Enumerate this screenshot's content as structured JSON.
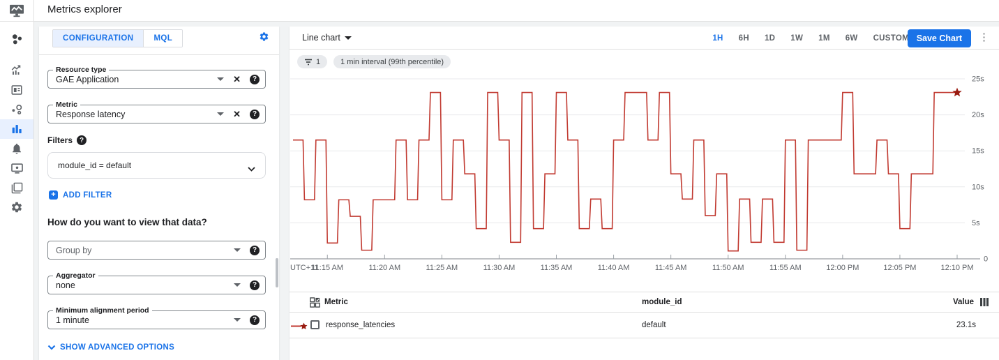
{
  "app": {
    "title": "Metrics explorer"
  },
  "colors": {
    "accent": "#1a73e8",
    "line": "#c13a31",
    "star": "#991b10",
    "grid": "#e9eaec",
    "axis": "#80868b",
    "tick_text": "#5f6368"
  },
  "sidebar": {
    "items": [
      {
        "name": "monitoring-overview"
      },
      {
        "name": "metrics"
      },
      {
        "name": "dashboards"
      },
      {
        "name": "services"
      },
      {
        "name": "metrics-explorer",
        "active": true
      },
      {
        "name": "alerting"
      },
      {
        "name": "uptime-checks"
      },
      {
        "name": "groups"
      },
      {
        "name": "settings"
      }
    ],
    "active_index": 4
  },
  "config_panel": {
    "tabs": [
      {
        "label": "CONFIGURATION",
        "active": true
      },
      {
        "label": "MQL",
        "active": false
      }
    ],
    "resource_type": {
      "label": "Resource type",
      "value": "GAE Application"
    },
    "metric": {
      "label": "Metric",
      "value": "Response latency"
    },
    "filters_label": "Filters",
    "filter_chip": "module_id = default",
    "add_filter_label": "ADD FILTER",
    "view_question": "How do you want to view that data?",
    "group_by": {
      "placeholder": "Group by"
    },
    "aggregator": {
      "label": "Aggregator",
      "value": "none"
    },
    "min_alignment": {
      "label": "Minimum alignment period",
      "value": "1 minute"
    },
    "advanced_toggle_label": "SHOW ADVANCED OPTIONS"
  },
  "chart_panel": {
    "chart_type_label": "Line chart",
    "time_ranges": [
      "1H",
      "6H",
      "1D",
      "1W",
      "1M",
      "6W",
      "CUSTOM"
    ],
    "active_range": "1H",
    "save_button_label": "Save Chart",
    "chips": [
      {
        "type": "filter-count",
        "label": "1"
      },
      {
        "type": "text",
        "label": "1 min interval (99th percentile)"
      }
    ]
  },
  "chart_data": {
    "type": "line",
    "step": true,
    "timezone_label": "UTC+11",
    "x": [
      "11:12 AM",
      "11:13 AM",
      "11:14 AM",
      "11:15 AM",
      "11:16 AM",
      "11:17 AM",
      "11:18 AM",
      "11:19 AM",
      "11:20 AM",
      "11:21 AM",
      "11:22 AM",
      "11:23 AM",
      "11:24 AM",
      "11:25 AM",
      "11:26 AM",
      "11:27 AM",
      "11:28 AM",
      "11:29 AM",
      "11:30 AM",
      "11:31 AM",
      "11:32 AM",
      "11:33 AM",
      "11:34 AM",
      "11:35 AM",
      "11:36 AM",
      "11:37 AM",
      "11:38 AM",
      "11:39 AM",
      "11:40 AM",
      "11:41 AM",
      "11:42 AM",
      "11:43 AM",
      "11:44 AM",
      "11:45 AM",
      "11:46 AM",
      "11:47 AM",
      "11:48 AM",
      "11:49 AM",
      "11:50 AM",
      "11:51 AM",
      "11:52 AM",
      "11:53 AM",
      "11:54 AM",
      "11:55 AM",
      "11:56 AM",
      "11:57 AM",
      "11:58 AM",
      "11:59 AM",
      "12:00 PM",
      "12:01 PM",
      "12:02 PM",
      "12:03 PM",
      "12:04 PM",
      "12:05 PM",
      "12:06 PM",
      "12:07 PM",
      "12:08 PM",
      "12:09 PM",
      "12:10 PM"
    ],
    "series": [
      {
        "name": "response_latencies (99th percentile)",
        "unit": "s",
        "values": [
          16.5,
          8.2,
          16.5,
          2.2,
          8.2,
          5.9,
          1.2,
          8.2,
          8.2,
          16.5,
          8.2,
          16.5,
          23.1,
          8.2,
          16.5,
          11.8,
          4.2,
          23.1,
          16.5,
          2.3,
          23.1,
          4.2,
          11.8,
          23.1,
          16.5,
          4.2,
          8.3,
          4.2,
          16.5,
          23.1,
          23.1,
          16.5,
          23.1,
          11.8,
          8.3,
          16.5,
          6.0,
          11.8,
          1.1,
          8.3,
          2.3,
          8.3,
          2.3,
          16.5,
          1.2,
          16.5,
          16.5,
          16.5,
          23.1,
          11.8,
          11.8,
          16.5,
          11.8,
          4.2,
          11.8,
          11.8,
          23.1,
          23.1,
          23.1
        ]
      }
    ],
    "x_tick_labels": [
      "11:15 AM",
      "11:20 AM",
      "11:25 AM",
      "11:30 AM",
      "11:35 AM",
      "11:40 AM",
      "11:45 AM",
      "11:50 AM",
      "11:55 AM",
      "12:00 PM",
      "12:05 PM",
      "12:10 PM"
    ],
    "y_ticks": [
      {
        "value": 0,
        "label": "0"
      },
      {
        "value": 5,
        "label": "5s"
      },
      {
        "value": 10,
        "label": "10s"
      },
      {
        "value": 15,
        "label": "15s"
      },
      {
        "value": 20,
        "label": "20s"
      },
      {
        "value": 25,
        "label": "25s"
      }
    ],
    "ylim": [
      0,
      25
    ],
    "grid": true,
    "end_marker": "star",
    "legend_position": "table-below"
  },
  "table": {
    "columns": [
      "Metric",
      "module_id",
      "Value"
    ],
    "rows": [
      {
        "metric": "response_latencies",
        "module_id": "default",
        "value": "23.1s"
      }
    ]
  }
}
